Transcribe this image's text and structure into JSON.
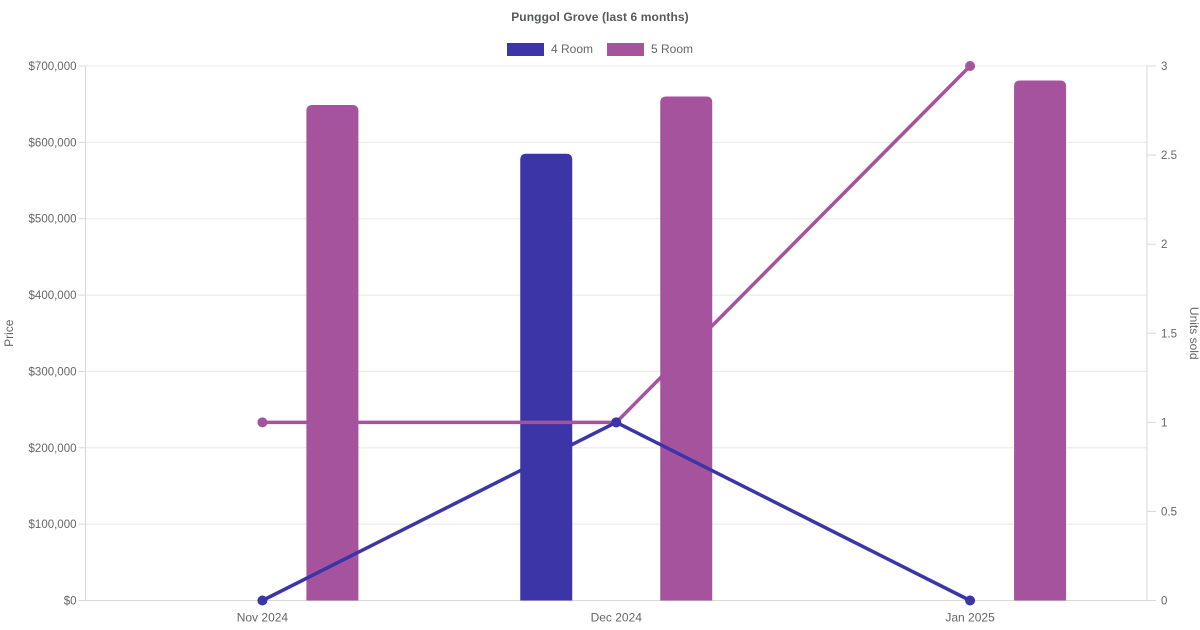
{
  "chart_data": {
    "type": "bar",
    "subtype": "combo-bar-line-dual-axis",
    "title": "Punggol Grove (last 6 months)",
    "categories": [
      "Nov 2024",
      "Dec 2024",
      "Jan 2025"
    ],
    "series": [
      {
        "name": "4 Room",
        "kind": "bar",
        "axis": "left",
        "color": "#3b35a8",
        "values": [
          null,
          585000,
          null
        ]
      },
      {
        "name": "5 Room",
        "kind": "bar",
        "axis": "left",
        "color": "#a4539c",
        "values": [
          649000,
          660000,
          681000
        ]
      },
      {
        "name": "4 Room",
        "kind": "line",
        "axis": "right",
        "color": "#3b35a8",
        "values": [
          0,
          1,
          0
        ]
      },
      {
        "name": "5 Room",
        "kind": "line",
        "axis": "right",
        "color": "#a4539c",
        "values": [
          1,
          1,
          3
        ]
      }
    ],
    "left_axis": {
      "label": "Price",
      "min": 0,
      "max": 700000,
      "tick_labels": [
        "$0",
        "$100,000",
        "$200,000",
        "$300,000",
        "$400,000",
        "$500,000",
        "$600,000",
        "$700,000"
      ]
    },
    "right_axis": {
      "label": "Units sold",
      "min": 0,
      "max": 3,
      "tick_labels": [
        "0",
        "0.5",
        "1",
        "1.5",
        "2",
        "2.5",
        "3"
      ]
    },
    "legend": {
      "position": "top",
      "items": [
        {
          "label": "4 Room",
          "color": "#3b35a8"
        },
        {
          "label": "5 Room",
          "color": "#a4539c"
        }
      ]
    },
    "grid": {
      "horizontal": true,
      "vertical": false
    },
    "colors": {
      "grid": "#e8e8e8",
      "axis": "#d8d8d8",
      "tick_text": "#666666",
      "title_text": "#57585a"
    }
  }
}
